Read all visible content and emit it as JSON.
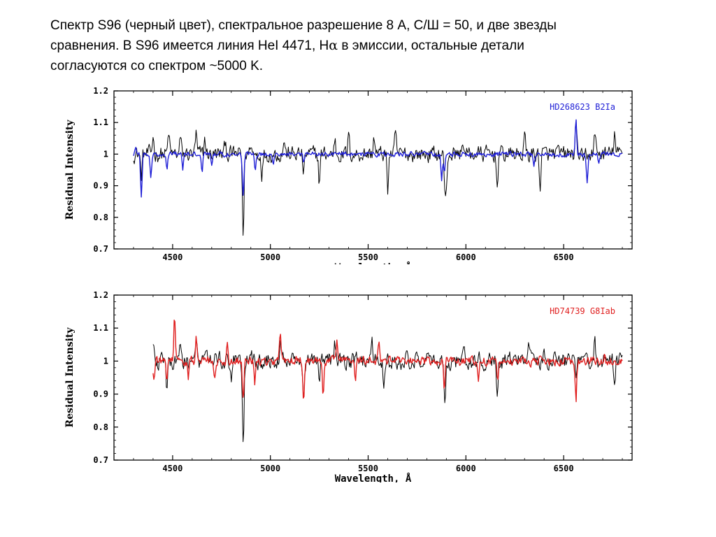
{
  "caption": {
    "line1": "Спектр S96 (черный цвет), спектральное разрешение 8 A, С/Ш = 50, и две звезды",
    "line2_pre": "сравнения. В S96 имеется линия HeI 4471, H",
    "alpha": "α",
    "line2_post": " в эмиссии, остальные детали",
    "line3": "согласуются со спектром ~5000 K."
  },
  "chart_data": [
    {
      "type": "line",
      "xlabel": "Wavelength, Å",
      "ylabel": "Residual Intensity",
      "xlim": [
        4200,
        6850
      ],
      "ylim": [
        0.7,
        1.2
      ],
      "xticks": [
        4500,
        5000,
        5500,
        6000,
        6500
      ],
      "yticks": [
        0.7,
        0.8,
        0.9,
        1,
        1.1,
        1.2
      ],
      "ytick_labels": [
        "0.7",
        "0.8",
        "0.9",
        "1",
        "1.1",
        "1.2"
      ],
      "legend": {
        "text": "HD268623 B2Ia",
        "position": "top-right",
        "color": "#1f1fd6"
      },
      "series": [
        {
          "color": "#000000",
          "x_range": [
            4300,
            6800
          ],
          "noise": 0.04,
          "features": [
            [
              4340,
              -0.07
            ],
            [
              4400,
              0.06
            ],
            [
              4480,
              0.07
            ],
            [
              4540,
              0.05
            ],
            [
              4620,
              0.06
            ],
            [
              4665,
              0.05
            ],
            [
              4770,
              0.04
            ],
            [
              4861,
              -0.26
            ],
            [
              4900,
              0.04
            ],
            [
              4957,
              -0.06
            ],
            [
              5070,
              0.05
            ],
            [
              5170,
              -0.07
            ],
            [
              5250,
              -0.09
            ],
            [
              5330,
              0.05
            ],
            [
              5400,
              0.06
            ],
            [
              5530,
              0.06
            ],
            [
              5600,
              -0.11
            ],
            [
              5640,
              0.06
            ],
            [
              5893,
              -0.12
            ],
            [
              5900,
              -0.1
            ],
            [
              5985,
              0.05
            ],
            [
              6160,
              -0.1
            ],
            [
              6300,
              0.06
            ],
            [
              6380,
              -0.1
            ],
            [
              6563,
              0.09
            ],
            [
              6600,
              -0.05
            ],
            [
              6660,
              0.07
            ],
            [
              6760,
              0.07
            ]
          ]
        },
        {
          "color": "#1f1fd6",
          "x_range": [
            4300,
            6800
          ],
          "noise": 0.012,
          "features": [
            [
              4310,
              0.02
            ],
            [
              4340,
              -0.13
            ],
            [
              4388,
              -0.07
            ],
            [
              4471,
              -0.05
            ],
            [
              4552,
              -0.05
            ],
            [
              4650,
              -0.06
            ],
            [
              4701,
              -0.04
            ],
            [
              4861,
              -0.14
            ],
            [
              4922,
              -0.05
            ],
            [
              5015,
              -0.04
            ],
            [
              5170,
              -0.03
            ],
            [
              5876,
              -0.08
            ],
            [
              5890,
              -0.06
            ],
            [
              6347,
              -0.04
            ],
            [
              6563,
              0.11
            ],
            [
              6620,
              -0.09
            ],
            [
              6678,
              -0.03
            ]
          ]
        }
      ]
    },
    {
      "type": "line",
      "xlabel": "Wavelength, Å",
      "ylabel": "Residual Intensity",
      "xlim": [
        4200,
        6850
      ],
      "ylim": [
        0.7,
        1.2
      ],
      "xticks": [
        4500,
        5000,
        5500,
        6000,
        6500
      ],
      "yticks": [
        0.7,
        0.8,
        0.9,
        1,
        1.1,
        1.2
      ],
      "ytick_labels": [
        "0.7",
        "0.8",
        "0.9",
        "1",
        "1.1",
        "1.2"
      ],
      "legend": {
        "text": "HD74739 G8Iab",
        "position": "top-right",
        "color": "#e02020"
      },
      "series": [
        {
          "color": "#000000",
          "x_range": [
            4400,
            6800
          ],
          "noise": 0.04,
          "features": [
            [
              4402,
              0.08
            ],
            [
              4470,
              -0.1
            ],
            [
              4540,
              0.06
            ],
            [
              4620,
              0.05
            ],
            [
              4800,
              -0.05
            ],
            [
              4861,
              -0.26
            ],
            [
              4900,
              0.04
            ],
            [
              5050,
              0.06
            ],
            [
              5170,
              -0.08
            ],
            [
              5250,
              -0.05
            ],
            [
              5330,
              0.05
            ],
            [
              5520,
              0.05
            ],
            [
              5580,
              -0.07
            ],
            [
              5893,
              -0.12
            ],
            [
              5990,
              0.05
            ],
            [
              6160,
              -0.09
            ],
            [
              6320,
              0.05
            ],
            [
              6400,
              0.06
            ],
            [
              6563,
              -0.06
            ],
            [
              6660,
              0.07
            ],
            [
              6760,
              -0.05
            ]
          ]
        },
        {
          "color": "#e02020",
          "x_range": [
            4400,
            6800
          ],
          "noise": 0.022,
          "features": [
            [
              4405,
              -0.06
            ],
            [
              4470,
              -0.07
            ],
            [
              4510,
              0.13
            ],
            [
              4580,
              -0.05
            ],
            [
              4620,
              0.08
            ],
            [
              4715,
              -0.06
            ],
            [
              4780,
              0.06
            ],
            [
              4861,
              -0.12
            ],
            [
              4920,
              -0.07
            ],
            [
              5050,
              0.08
            ],
            [
              5170,
              -0.11
            ],
            [
              5270,
              -0.1
            ],
            [
              5340,
              0.06
            ],
            [
              5435,
              -0.08
            ],
            [
              5555,
              0.05
            ],
            [
              5890,
              -0.1
            ],
            [
              6065,
              -0.06
            ],
            [
              6163,
              -0.07
            ],
            [
              6563,
              -0.12
            ],
            [
              6710,
              0.04
            ]
          ]
        }
      ]
    }
  ]
}
